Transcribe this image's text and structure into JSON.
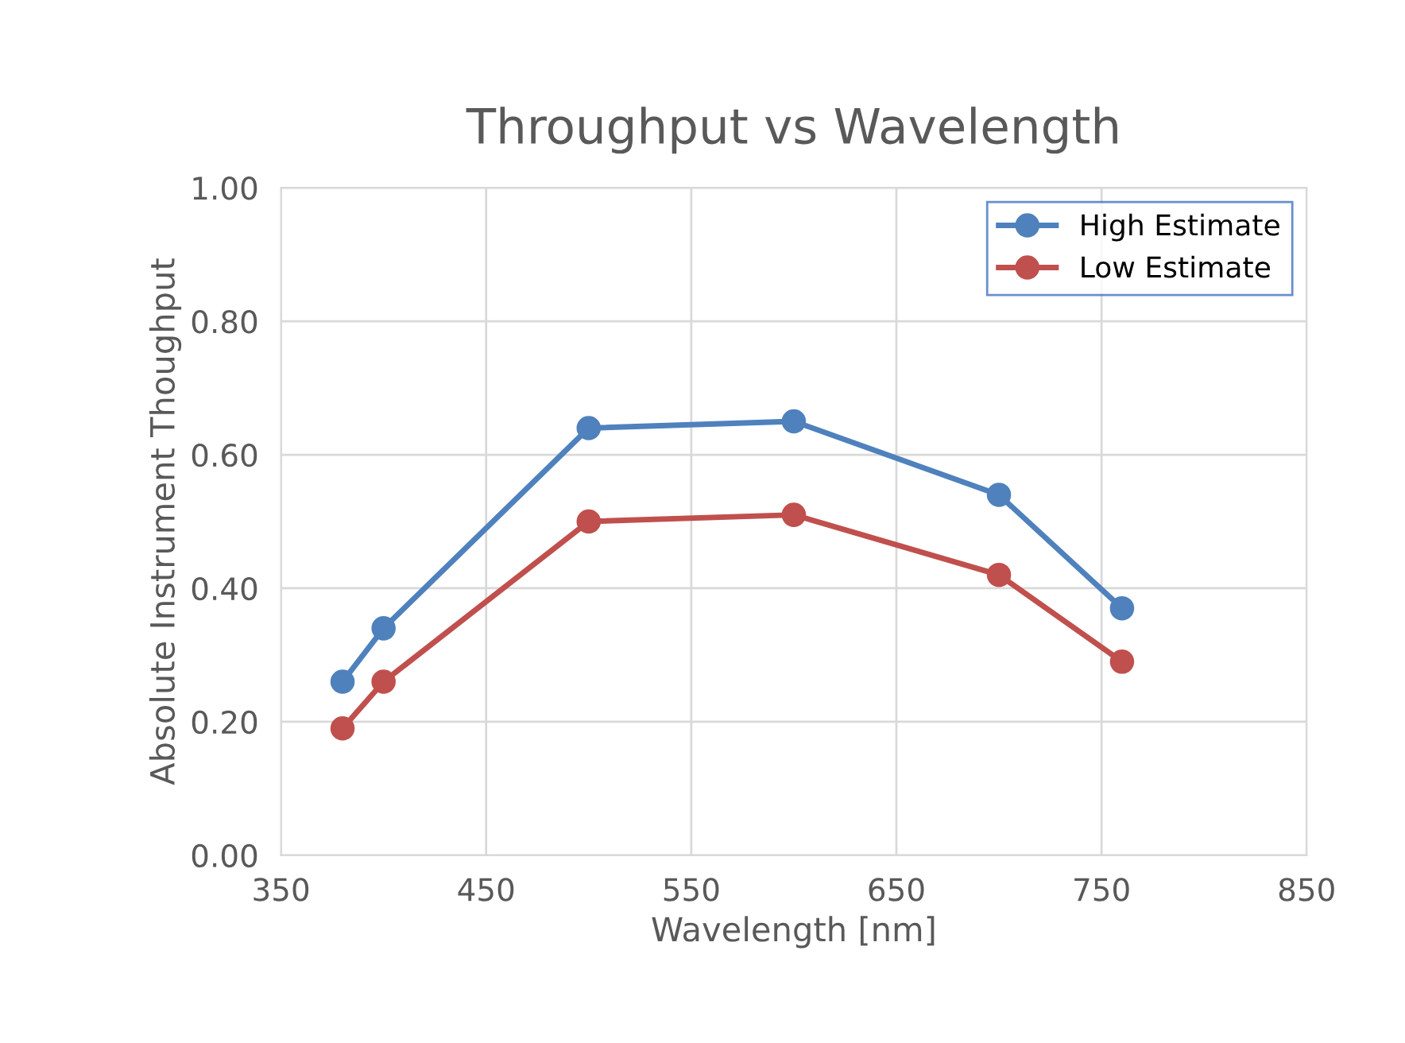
{
  "chart_data": {
    "type": "line",
    "title": "Throughput vs Wavelength",
    "xlabel": "Wavelength [nm]",
    "ylabel": "Absolute Instrument Thoughput",
    "x": [
      380,
      400,
      500,
      600,
      700,
      760
    ],
    "series": [
      {
        "name": "High Estimate",
        "color": "#4f81bd",
        "values": [
          0.26,
          0.34,
          0.64,
          0.65,
          0.54,
          0.37
        ]
      },
      {
        "name": "Low Estimate",
        "color": "#c0504d",
        "values": [
          0.19,
          0.26,
          0.5,
          0.51,
          0.42,
          0.29
        ]
      }
    ],
    "xlim": [
      350,
      850
    ],
    "xticks": [
      350,
      450,
      550,
      650,
      750,
      850
    ],
    "ylim": [
      0,
      1
    ],
    "yticks": [
      {
        "value": 0,
        "label": "0.00"
      },
      {
        "value": 0.2,
        "label": "0.20"
      },
      {
        "value": 0.4,
        "label": "0.40"
      },
      {
        "value": 0.6,
        "label": "0.60"
      },
      {
        "value": 0.8,
        "label": "0.80"
      },
      {
        "value": 1,
        "label": "1.00"
      }
    ],
    "grid": true,
    "legend": "top right",
    "marker": "circle",
    "line_style": "solid"
  }
}
